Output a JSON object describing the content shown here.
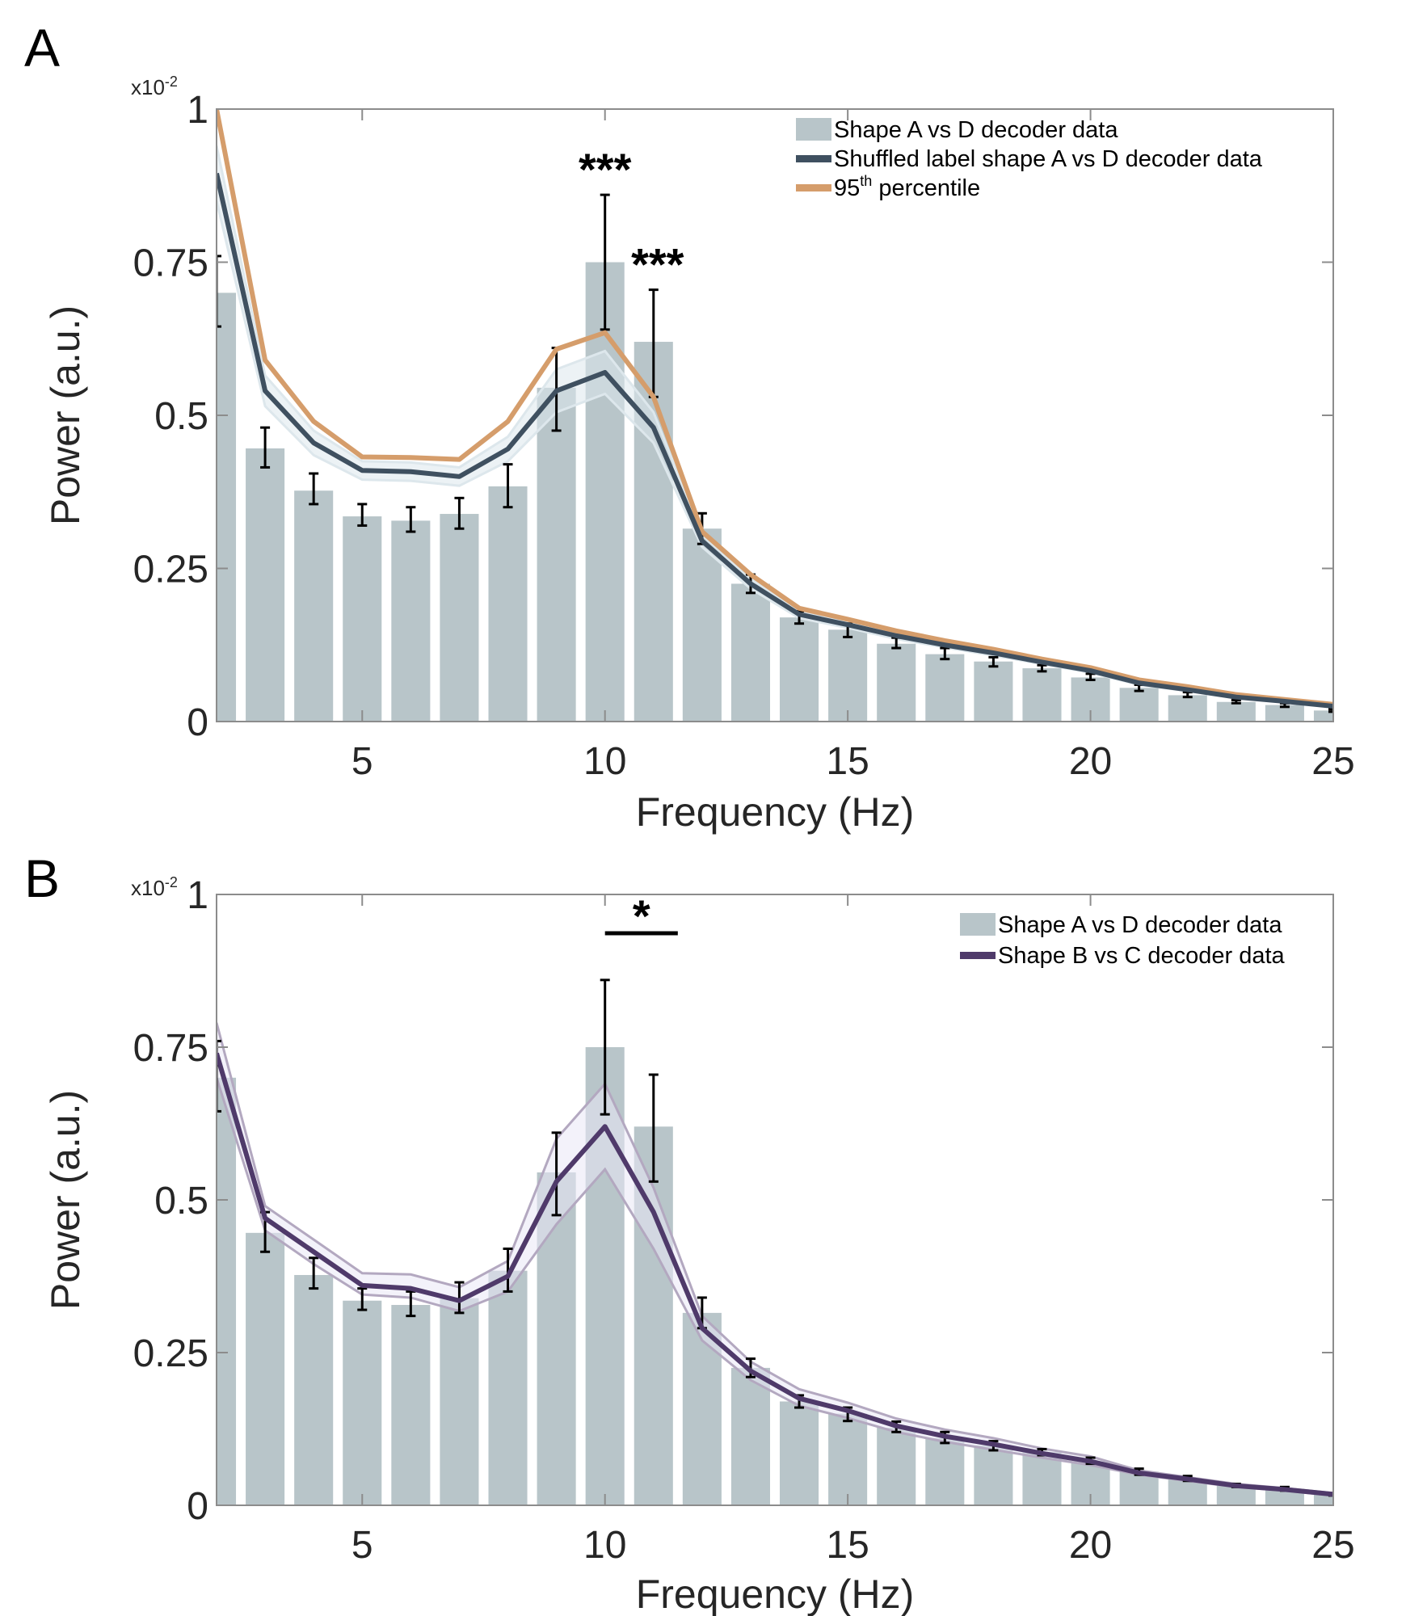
{
  "chart_data": [
    {
      "panel": "A",
      "type": "bar",
      "title": "",
      "xlabel": "Frequency (Hz)",
      "ylabel": "Power (a.u.)",
      "y_exponent_label": "x10",
      "y_exponent_power": "-2",
      "xlim": [
        2,
        25
      ],
      "ylim": [
        0,
        1
      ],
      "xticks": [
        5,
        10,
        15,
        20,
        25
      ],
      "yticks": [
        0,
        0.25,
        0.5,
        0.75,
        1
      ],
      "ytick_labels": [
        "0",
        "0.25",
        "0.5",
        "0.75",
        "1"
      ],
      "grid": false,
      "legend_position": "top-right",
      "x": [
        2,
        3,
        4,
        5,
        6,
        7,
        8,
        9,
        10,
        11,
        12,
        13,
        14,
        15,
        16,
        17,
        18,
        19,
        20,
        21,
        22,
        23,
        24,
        25
      ],
      "bars": {
        "name": "Shape A vs D decoder data",
        "color": "#b8c5c9",
        "values": [
          0.7,
          0.446,
          0.377,
          0.335,
          0.328,
          0.339,
          0.384,
          0.545,
          0.75,
          0.62,
          0.315,
          0.225,
          0.17,
          0.15,
          0.127,
          0.11,
          0.098,
          0.087,
          0.072,
          0.055,
          0.043,
          0.032,
          0.027,
          0.018
        ],
        "err_upper": [
          0.76,
          0.48,
          0.405,
          0.355,
          0.35,
          0.365,
          0.42,
          0.61,
          0.86,
          0.705,
          0.34,
          0.24,
          0.18,
          0.16,
          0.137,
          0.12,
          0.105,
          0.092,
          0.078,
          0.06,
          0.048,
          0.035,
          0.03,
          0.02
        ],
        "err_lower": [
          0.645,
          0.415,
          0.355,
          0.32,
          0.31,
          0.315,
          0.35,
          0.475,
          0.64,
          0.53,
          0.29,
          0.21,
          0.16,
          0.138,
          0.12,
          0.102,
          0.09,
          0.082,
          0.068,
          0.05,
          0.04,
          0.03,
          0.024,
          0.016
        ]
      },
      "series": [
        {
          "name": "Shuffled label shape A vs D decoder data",
          "color": "#3f5060",
          "band_color": "#dde7ec",
          "values": [
            0.895,
            0.54,
            0.455,
            0.41,
            0.408,
            0.4,
            0.445,
            0.54,
            0.57,
            0.48,
            0.295,
            0.225,
            0.175,
            0.158,
            0.14,
            0.125,
            0.112,
            0.097,
            0.083,
            0.063,
            0.052,
            0.04,
            0.033,
            0.025
          ],
          "band_upper": [
            0.94,
            0.565,
            0.475,
            0.425,
            0.423,
            0.415,
            0.465,
            0.575,
            0.605,
            0.505,
            0.305,
            0.233,
            0.181,
            0.163,
            0.145,
            0.129,
            0.116,
            0.1,
            0.086,
            0.066,
            0.054,
            0.042,
            0.034,
            0.026
          ],
          "band_lower": [
            0.85,
            0.515,
            0.435,
            0.395,
            0.393,
            0.385,
            0.425,
            0.505,
            0.535,
            0.455,
            0.285,
            0.217,
            0.169,
            0.153,
            0.135,
            0.121,
            0.108,
            0.094,
            0.08,
            0.06,
            0.05,
            0.038,
            0.032,
            0.024
          ]
        },
        {
          "name": "95th percentile",
          "legend_label": "95",
          "legend_sup": "th",
          "legend_suffix": " percentile",
          "color": "#d59d6b",
          "values": [
            1.0,
            0.59,
            0.49,
            0.432,
            0.431,
            0.428,
            0.49,
            0.608,
            0.635,
            0.53,
            0.31,
            0.24,
            0.185,
            0.167,
            0.148,
            0.132,
            0.118,
            0.102,
            0.088,
            0.068,
            0.057,
            0.044,
            0.036,
            0.028
          ]
        }
      ],
      "annotations": [
        {
          "text": "***",
          "x": 10
        },
        {
          "text": "***",
          "x": 11
        }
      ],
      "legend": [
        {
          "label": "Shape A vs D decoder data",
          "kind": "patch"
        },
        {
          "label": "Shuffled label shape A vs D decoder data",
          "kind": "line"
        },
        {
          "label": "95",
          "sup": "th",
          "suffix": " percentile",
          "kind": "line"
        }
      ]
    },
    {
      "panel": "B",
      "type": "bar",
      "title": "",
      "xlabel": "Frequency (Hz)",
      "ylabel": "Power (a.u.)",
      "y_exponent_label": "x10",
      "y_exponent_power": "-2",
      "xlim": [
        2,
        25
      ],
      "ylim": [
        0,
        1
      ],
      "xticks": [
        5,
        10,
        15,
        20,
        25
      ],
      "yticks": [
        0,
        0.25,
        0.5,
        0.75,
        1
      ],
      "ytick_labels": [
        "0",
        "0.25",
        "0.5",
        "0.75",
        "1"
      ],
      "grid": false,
      "legend_position": "top-right",
      "x": [
        2,
        3,
        4,
        5,
        6,
        7,
        8,
        9,
        10,
        11,
        12,
        13,
        14,
        15,
        16,
        17,
        18,
        19,
        20,
        21,
        22,
        23,
        24,
        25
      ],
      "bars": {
        "name": "Shape A vs D decoder data",
        "color": "#b8c5c9",
        "values": [
          0.7,
          0.446,
          0.377,
          0.335,
          0.328,
          0.339,
          0.384,
          0.545,
          0.75,
          0.62,
          0.315,
          0.225,
          0.17,
          0.15,
          0.127,
          0.11,
          0.098,
          0.087,
          0.072,
          0.055,
          0.043,
          0.032,
          0.027,
          0.018
        ],
        "err_upper": [
          0.76,
          0.48,
          0.405,
          0.355,
          0.35,
          0.365,
          0.42,
          0.61,
          0.86,
          0.705,
          0.34,
          0.24,
          0.18,
          0.16,
          0.137,
          0.12,
          0.105,
          0.092,
          0.078,
          0.06,
          0.048,
          0.035,
          0.03,
          0.02
        ],
        "err_lower": [
          0.645,
          0.415,
          0.355,
          0.32,
          0.31,
          0.315,
          0.35,
          0.475,
          0.64,
          0.53,
          0.29,
          0.21,
          0.16,
          0.138,
          0.12,
          0.102,
          0.09,
          0.082,
          0.068,
          0.05,
          0.04,
          0.03,
          0.024,
          0.016
        ]
      },
      "series": [
        {
          "name": "Shape B vs C decoder data",
          "color": "#4f3a6a",
          "band_color": "#e9e8f5",
          "band_edge_color": "#b3a8c0",
          "values": [
            0.74,
            0.47,
            0.415,
            0.36,
            0.355,
            0.335,
            0.375,
            0.53,
            0.62,
            0.48,
            0.29,
            0.22,
            0.175,
            0.155,
            0.13,
            0.113,
            0.1,
            0.085,
            0.072,
            0.053,
            0.043,
            0.032,
            0.026,
            0.018
          ],
          "band_upper": [
            0.79,
            0.49,
            0.435,
            0.38,
            0.378,
            0.357,
            0.4,
            0.6,
            0.69,
            0.52,
            0.31,
            0.235,
            0.19,
            0.168,
            0.142,
            0.124,
            0.11,
            0.093,
            0.08,
            0.057,
            0.046,
            0.035,
            0.028,
            0.02
          ],
          "band_lower": [
            0.7,
            0.45,
            0.395,
            0.345,
            0.34,
            0.318,
            0.35,
            0.46,
            0.55,
            0.42,
            0.27,
            0.205,
            0.163,
            0.143,
            0.12,
            0.104,
            0.091,
            0.078,
            0.066,
            0.05,
            0.04,
            0.03,
            0.024,
            0.016
          ]
        }
      ],
      "annotations": [
        {
          "text": "*",
          "x_start": 10,
          "x_end": 11.5
        }
      ],
      "legend": [
        {
          "label": "Shape A vs D decoder data",
          "kind": "patch"
        },
        {
          "label": "Shape B vs C decoder data",
          "kind": "line"
        }
      ]
    }
  ]
}
